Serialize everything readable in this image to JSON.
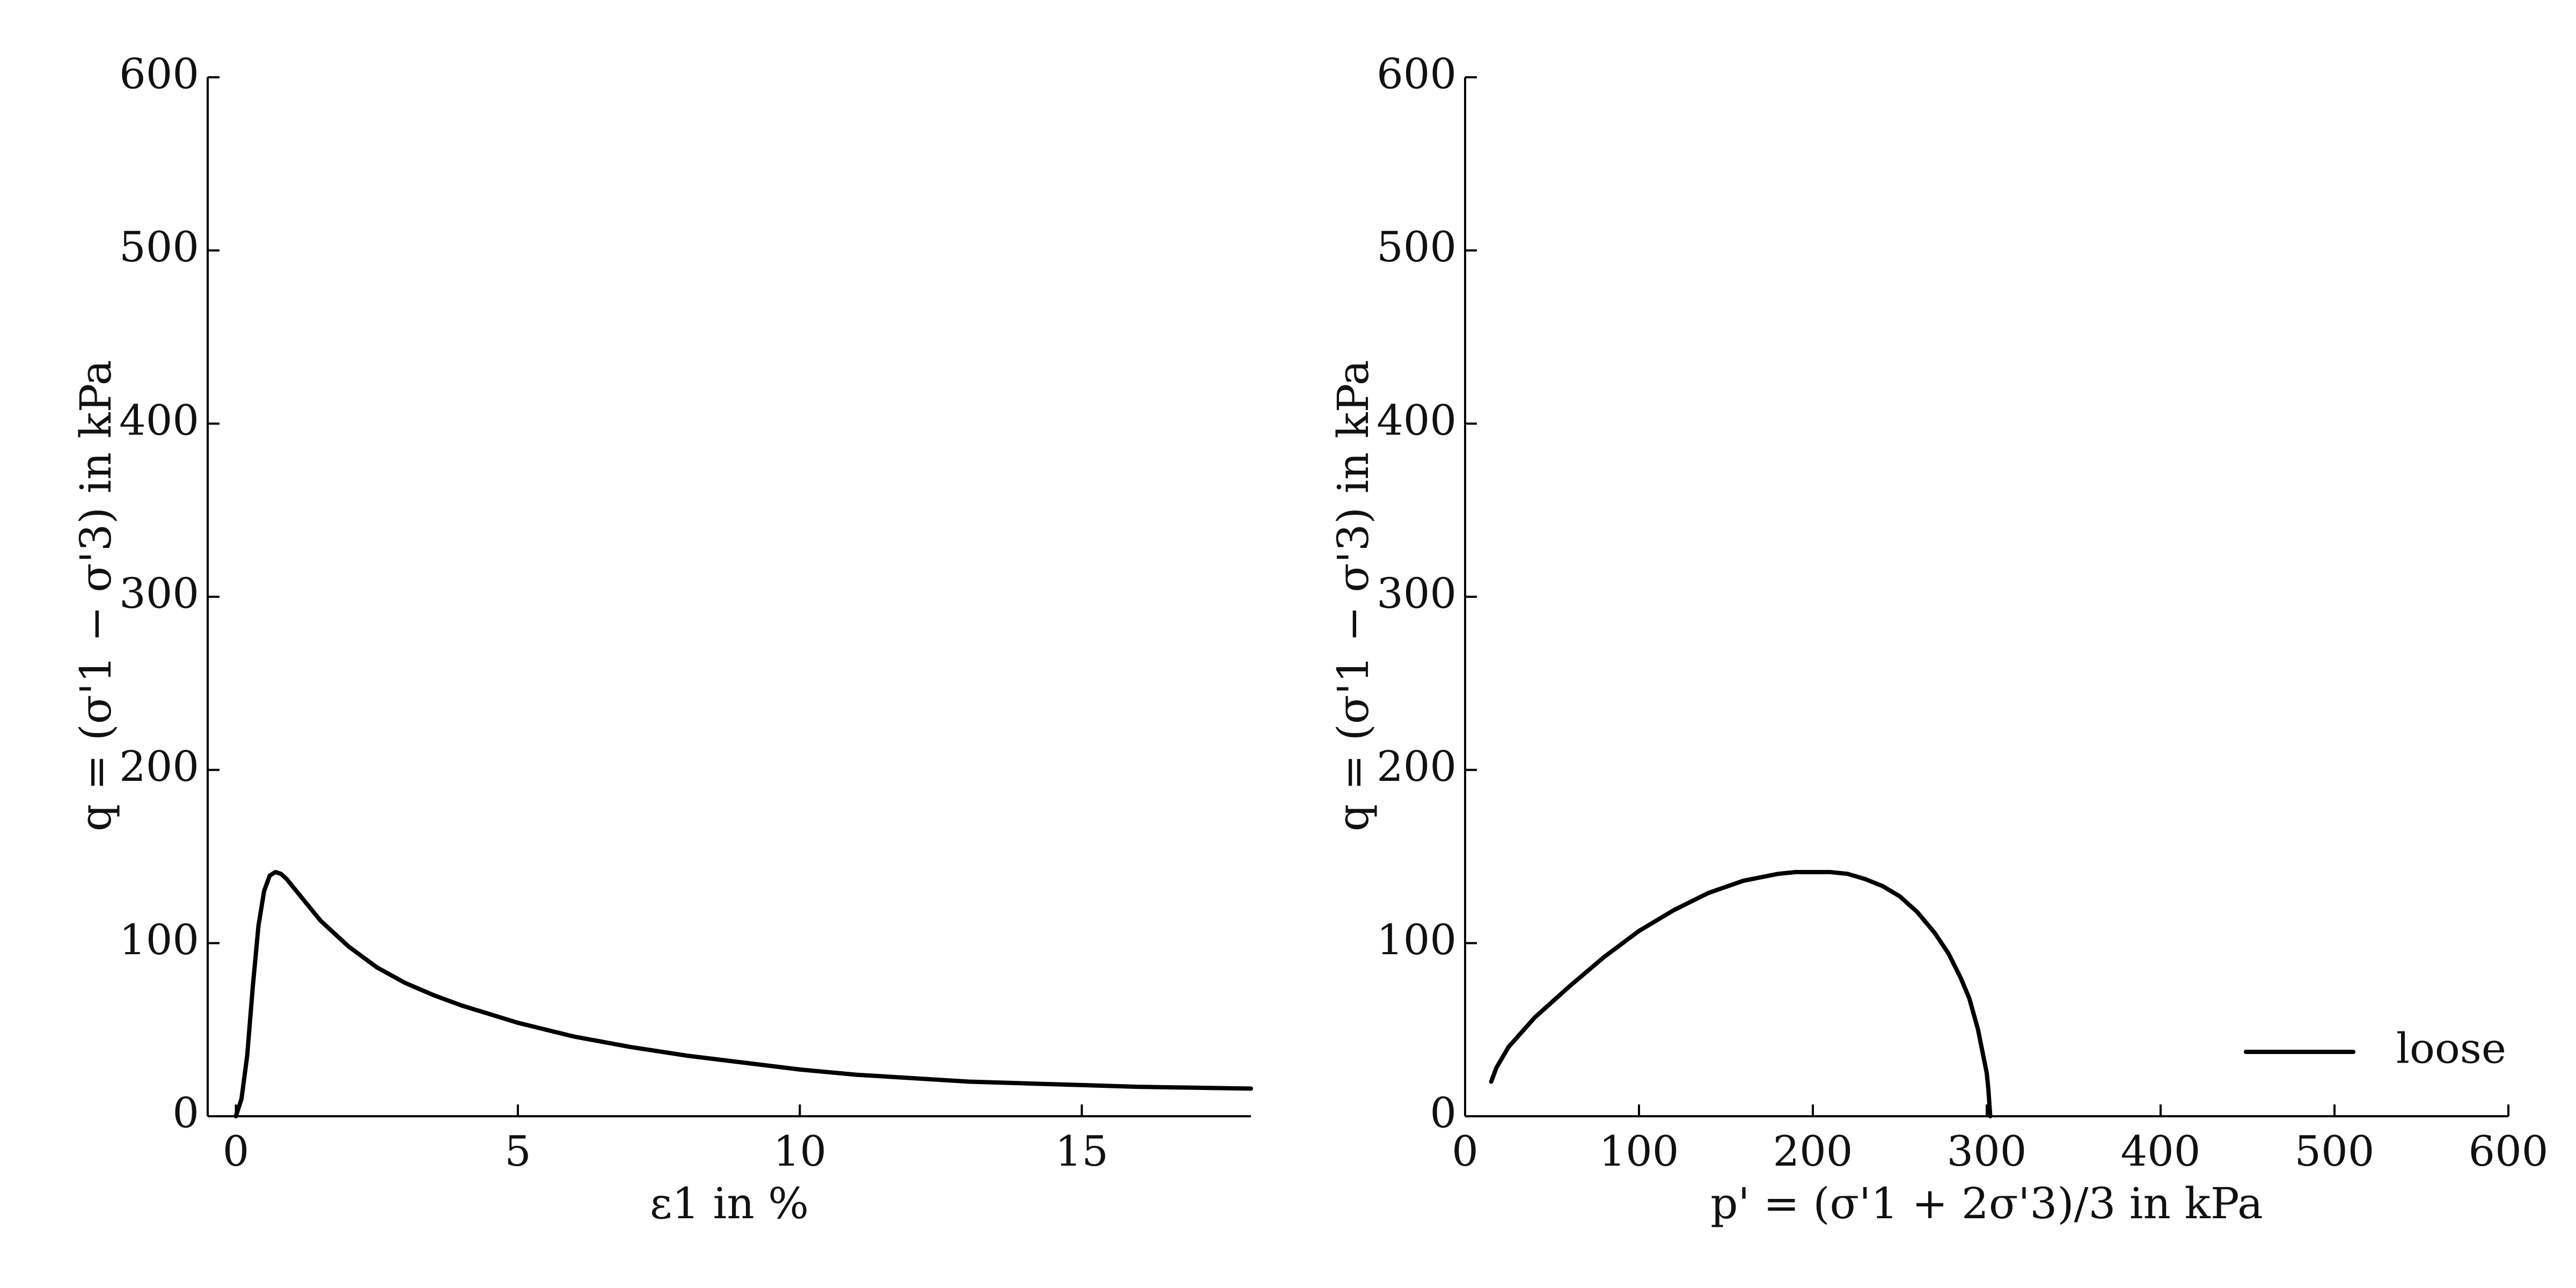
{
  "chart_data": [
    {
      "type": "line",
      "xlabel": "ε1 in %",
      "ylabel": "q = (σ'1 − σ'3) in kPa",
      "xlim": [
        -0.5,
        18
      ],
      "ylim": [
        0,
        600
      ],
      "xticks": [
        0,
        5,
        10,
        15
      ],
      "yticks": [
        0,
        100,
        200,
        300,
        400,
        500,
        600
      ],
      "grid": false,
      "series": [
        {
          "color": "#000000",
          "x": [
            0,
            0.1,
            0.2,
            0.3,
            0.4,
            0.5,
            0.6,
            0.7,
            0.8,
            0.9,
            1.0,
            1.2,
            1.5,
            2.0,
            2.5,
            3.0,
            3.5,
            4.0,
            5.0,
            6.0,
            7.0,
            8.0,
            9.0,
            10.0,
            11.0,
            12.0,
            13.0,
            14.0,
            15.0,
            16.0,
            17.0,
            18.0
          ],
          "y": [
            0,
            10,
            35,
            75,
            110,
            130,
            139,
            141,
            140,
            137,
            133,
            125,
            113,
            98,
            86,
            77,
            70,
            64,
            54,
            46,
            40,
            35,
            31,
            27,
            24,
            22,
            20,
            19,
            18,
            17,
            16.5,
            16
          ]
        }
      ]
    },
    {
      "type": "line",
      "xlabel": "p' = (σ'1 + 2σ'3)/3 in kPa",
      "ylabel": "q = (σ'1 − σ'3) in kPa",
      "xlim": [
        0,
        600
      ],
      "ylim": [
        0,
        600
      ],
      "xticks": [
        0,
        100,
        200,
        300,
        400,
        500,
        600
      ],
      "yticks": [
        0,
        100,
        200,
        300,
        400,
        500,
        600
      ],
      "grid": false,
      "legend_position": "lower-right",
      "series": [
        {
          "name": "loose",
          "color": "#000000",
          "x": [
            302,
            301,
            300,
            298,
            295,
            290,
            285,
            278,
            270,
            260,
            250,
            240,
            230,
            220,
            210,
            200,
            190,
            180,
            160,
            140,
            120,
            100,
            80,
            60,
            40,
            25,
            18,
            15
          ],
          "y": [
            0,
            15,
            25,
            35,
            50,
            68,
            80,
            94,
            106,
            118,
            127,
            133,
            137,
            140,
            141,
            141,
            141,
            140,
            136,
            129,
            119,
            107,
            92,
            75,
            57,
            40,
            28,
            20
          ]
        }
      ]
    }
  ]
}
